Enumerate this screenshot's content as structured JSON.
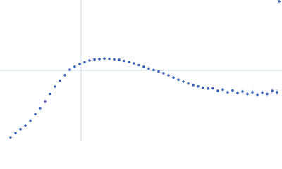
{
  "chart_data": {
    "type": "scatter",
    "color": "#3a62b5",
    "error_color": "#a9bde3",
    "grid_color": "#ccd8ea",
    "xlim": [
      0,
      4
    ],
    "ylim": [
      0,
      2
    ],
    "xgrid": [
      1.15
    ],
    "ygrid": [
      1.0
    ],
    "x": [
      0.15,
      0.22,
      0.29,
      0.36,
      0.43,
      0.5,
      0.57,
      0.64,
      0.71,
      0.78,
      0.85,
      0.92,
      0.99,
      1.06,
      1.13,
      1.2,
      1.27,
      1.34,
      1.41,
      1.48,
      1.55,
      1.62,
      1.69,
      1.76,
      1.83,
      1.9,
      1.97,
      2.04,
      2.11,
      2.18,
      2.25,
      2.32,
      2.39,
      2.46,
      2.53,
      2.6,
      2.67,
      2.74,
      2.81,
      2.88,
      2.95,
      3.02,
      3.09,
      3.16,
      3.23,
      3.3,
      3.37,
      3.44,
      3.51,
      3.58,
      3.65,
      3.72,
      3.79,
      3.86,
      3.93,
      3.96
    ],
    "values": [
      0.05,
      0.106,
      0.162,
      0.218,
      0.287,
      0.375,
      0.462,
      0.56,
      0.665,
      0.77,
      0.855,
      0.932,
      1.009,
      1.052,
      1.089,
      1.117,
      1.14,
      1.154,
      1.161,
      1.168,
      1.165,
      1.158,
      1.151,
      1.135,
      1.117,
      1.1,
      1.075,
      1.051,
      1.027,
      1.006,
      0.985,
      0.961,
      0.93,
      0.898,
      0.868,
      0.84,
      0.812,
      0.79,
      0.772,
      0.755,
      0.742,
      0.745,
      0.71,
      0.728,
      0.69,
      0.715,
      0.68,
      0.7,
      0.665,
      0.69,
      0.655,
      0.685,
      0.665,
      0.71,
      0.69,
      1.98
    ],
    "errors": [
      0.004,
      0.004,
      0.004,
      0.004,
      0.004,
      0.004,
      0.004,
      0.004,
      0.004,
      0.004,
      0.004,
      0.004,
      0.004,
      0.004,
      0.004,
      0.004,
      0.004,
      0.004,
      0.004,
      0.004,
      0.008,
      0.008,
      0.008,
      0.008,
      0.008,
      0.008,
      0.008,
      0.008,
      0.008,
      0.008,
      0.008,
      0.008,
      0.008,
      0.008,
      0.008,
      0.008,
      0.008,
      0.008,
      0.008,
      0.008,
      0.02,
      0.02,
      0.025,
      0.025,
      0.025,
      0.03,
      0.03,
      0.03,
      0.03,
      0.035,
      0.035,
      0.035,
      0.04,
      0.04,
      0.04,
      0.01
    ]
  }
}
